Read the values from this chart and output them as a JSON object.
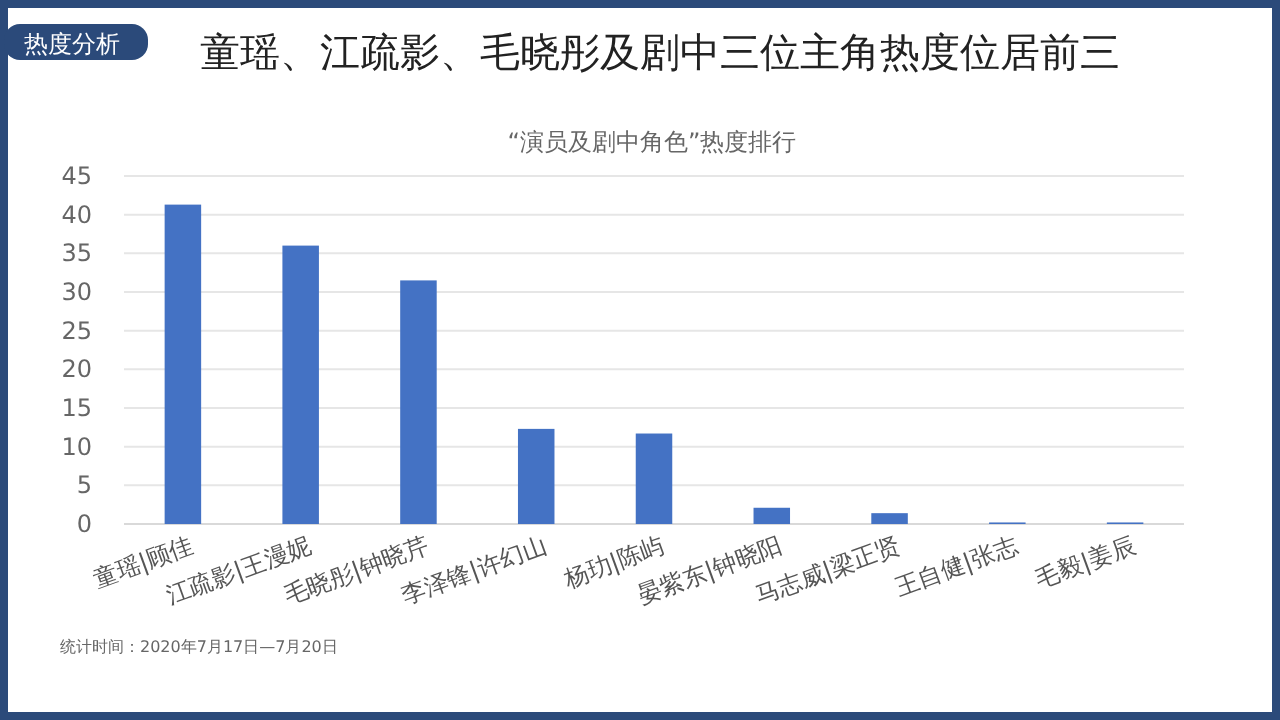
{
  "chart_data": {
    "type": "bar",
    "title": "童瑶、江疏影、毛晓彤及剧中三位主角热度位居前三",
    "subtitle": "“演员及剧中角色”热度排行",
    "categories": [
      "童瑶|顾佳",
      "江疏影|王漫妮",
      "毛晓彤|钟晓芹",
      "李泽锋|许幻山",
      "杨玏|陈屿",
      "晏紫东|钟晓阳",
      "马志威|梁正贤",
      "王自健|张志",
      "毛毅|姜辰"
    ],
    "values": [
      41.3,
      36.0,
      31.5,
      12.3,
      11.7,
      2.1,
      1.4,
      0.2,
      0.2
    ],
    "color": "#4472c4",
    "ylim": [
      0,
      45
    ],
    "yticks": [
      0,
      5,
      10,
      15,
      20,
      25,
      30,
      35,
      40,
      45
    ],
    "grid": "y",
    "annotations": [
      "热度分析",
      "统计时间：2020年7月17日—7月20日"
    ]
  }
}
